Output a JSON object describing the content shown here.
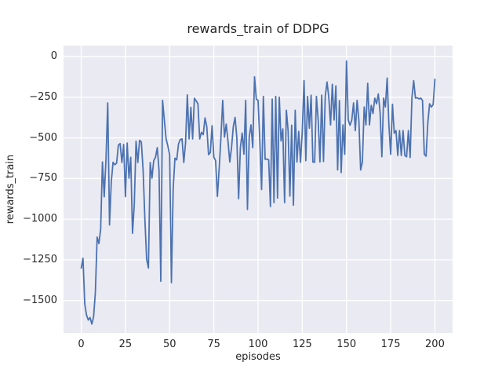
{
  "figure": {
    "title": "rewards_train of DDPG",
    "xlabel": "episodes",
    "ylabel": "rewards_train"
  },
  "chart_data": {
    "type": "line",
    "title": "rewards_train of DDPG",
    "xlabel": "episodes",
    "ylabel": "rewards_train",
    "xlim": [
      -10,
      210
    ],
    "ylim": [
      -1700,
      68
    ],
    "xticks": [
      0,
      25,
      50,
      75,
      100,
      125,
      150,
      175,
      200
    ],
    "xtick_labels": [
      "0",
      "25",
      "50",
      "75",
      "100",
      "125",
      "150",
      "175",
      "200"
    ],
    "yticks": [
      0,
      -250,
      -500,
      -750,
      -1000,
      -1250,
      -1500
    ],
    "ytick_labels": [
      "0",
      "−250",
      "−500",
      "−750",
      "−1000",
      "−1250",
      "−1500"
    ],
    "grid": true,
    "legend": false,
    "background_color": "#eaeaf2",
    "grid_color": "#ffffff",
    "line_color": "#4c72b0",
    "text_color": "#262626",
    "series": [
      {
        "name": "rewards_train",
        "x_start": 0,
        "x_step": 1,
        "values": [
          -1300,
          -1240,
          -1520,
          -1590,
          -1620,
          -1605,
          -1645,
          -1600,
          -1450,
          -1110,
          -1150,
          -1060,
          -648,
          -862,
          -632,
          -285,
          -1035,
          -770,
          -650,
          -665,
          -655,
          -545,
          -535,
          -651,
          -540,
          -861,
          -532,
          -748,
          -619,
          -1087,
          -909,
          -520,
          -651,
          -515,
          -525,
          -700,
          -1000,
          -1247,
          -1300,
          -651,
          -748,
          -640,
          -619,
          -560,
          -700,
          -1382,
          -269,
          -390,
          -506,
          -550,
          -603,
          -1390,
          -812,
          -625,
          -635,
          -538,
          -510,
          -506,
          -651,
          -530,
          -235,
          -506,
          -312,
          -506,
          -256,
          -272,
          -290,
          -506,
          -466,
          -480,
          -377,
          -430,
          -603,
          -590,
          -425,
          -619,
          -640,
          -860,
          -690,
          -500,
          -269,
          -495,
          -415,
          -520,
          -648,
          -560,
          -430,
          -374,
          -500,
          -874,
          -560,
          -470,
          -600,
          -269,
          -940,
          -495,
          -420,
          -560,
          -124,
          -261,
          -269,
          -519,
          -818,
          -245,
          -632,
          -630,
          -635,
          -922,
          -261,
          -898,
          -245,
          -870,
          -250,
          -519,
          -445,
          -898,
          -330,
          -455,
          -858,
          -422,
          -914,
          -330,
          -648,
          -460,
          -650,
          -460,
          -148,
          -640,
          -245,
          -440,
          -237,
          -648,
          -650,
          -245,
          -390,
          -648,
          -237,
          -645,
          -245,
          -156,
          -250,
          -420,
          -170,
          -390,
          -180,
          -697,
          -270,
          -713,
          -420,
          -600,
          -27,
          -390,
          -422,
          -390,
          -285,
          -455,
          -269,
          -390,
          -697,
          -648,
          -310,
          -420,
          -164,
          -420,
          -300,
          -350,
          -255,
          -290,
          -230,
          -340,
          -616,
          -255,
          -310,
          -132,
          -425,
          -600,
          -293,
          -471,
          -455,
          -608,
          -455,
          -608,
          -455,
          -608,
          -616,
          -455,
          -620,
          -253,
          -148,
          -255,
          -253,
          -260,
          -255,
          -270,
          -600,
          -613,
          -406,
          -290,
          -310,
          -295,
          -140
        ]
      }
    ]
  }
}
